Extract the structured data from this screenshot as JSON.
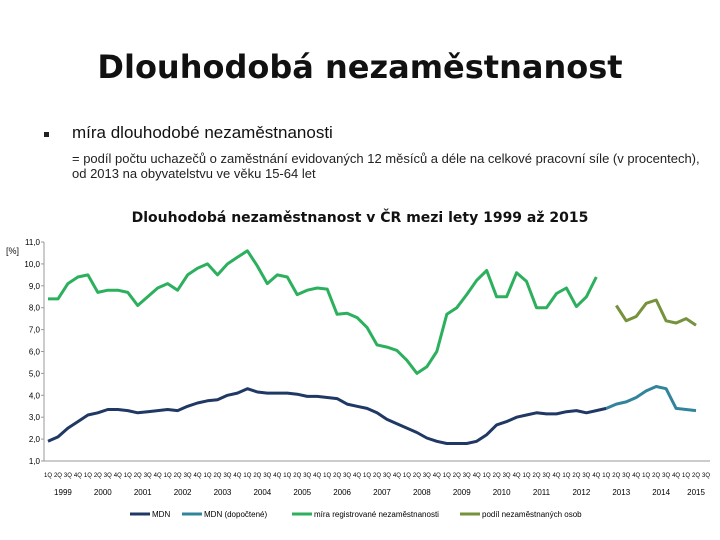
{
  "slide": {
    "title": "Dlouhodobá nezaměstnanost",
    "bullet": "míra dlouhodobé nezaměstnanosti",
    "description": "= podíl počtu uchazečů o zaměstnání evidovaných 12 měsíců a déle na celkové pracovní síle (v procentech), od 2013 na obyvatelstvu ve věku 15-64 let"
  },
  "chart_data": {
    "type": "line",
    "title": "Dlouhodobá nezaměstnanost v ČR mezi lety 1999 až 2015",
    "ylabel": "[%]",
    "xlabel": "",
    "ylim": [
      1.0,
      11.0
    ],
    "yticks": [
      "1,0",
      "2,0",
      "3,0",
      "4,0",
      "5,0",
      "6,0",
      "7,0",
      "8,0",
      "9,0",
      "10,0",
      "11,0"
    ],
    "quarter_labels": [
      "1Q",
      "2Q",
      "3Q",
      "4Q"
    ],
    "years": [
      "1999",
      "2000",
      "2001",
      "2002",
      "2003",
      "2004",
      "2005",
      "2006",
      "2007",
      "2008",
      "2009",
      "2010",
      "2011",
      "2012",
      "2013",
      "2014",
      "2015"
    ],
    "legend_position": "bottom",
    "grid": false,
    "series": [
      {
        "name": "MDN",
        "color": "#1f3864",
        "values": [
          1.9,
          2.1,
          2.5,
          2.8,
          3.1,
          3.2,
          3.35,
          3.35,
          3.3,
          3.2,
          3.25,
          3.3,
          3.35,
          3.3,
          3.5,
          3.65,
          3.75,
          3.8,
          4.0,
          4.1,
          4.3,
          4.15,
          4.1,
          4.1,
          4.1,
          4.05,
          3.95,
          3.95,
          3.9,
          3.85,
          3.6,
          3.5,
          3.4,
          3.2,
          2.9,
          2.7,
          2.5,
          2.3,
          2.05,
          1.9,
          1.8,
          1.8,
          1.8,
          1.9,
          2.2,
          2.65,
          2.8,
          3.0,
          3.1,
          3.2,
          3.15,
          3.15,
          3.25,
          3.3,
          3.2,
          3.3,
          3.4,
          null,
          null,
          null,
          null,
          null,
          null,
          null,
          null,
          null,
          null
        ]
      },
      {
        "name": "MDN (dopočtené)",
        "color": "#31849b",
        "values": [
          null,
          null,
          null,
          null,
          null,
          null,
          null,
          null,
          null,
          null,
          null,
          null,
          null,
          null,
          null,
          null,
          null,
          null,
          null,
          null,
          null,
          null,
          null,
          null,
          null,
          null,
          null,
          null,
          null,
          null,
          null,
          null,
          null,
          null,
          null,
          null,
          null,
          null,
          null,
          null,
          null,
          null,
          null,
          null,
          null,
          null,
          null,
          null,
          null,
          null,
          null,
          null,
          null,
          null,
          null,
          null,
          3.4,
          3.6,
          3.7,
          3.9,
          4.2,
          4.4,
          4.3,
          3.4,
          3.35,
          3.3,
          null
        ]
      },
      {
        "name": "míra registrované nezaměstnanosti",
        "color": "#2cb05e",
        "values": [
          8.4,
          8.4,
          9.1,
          9.4,
          9.5,
          8.7,
          8.8,
          8.8,
          8.7,
          8.1,
          8.5,
          8.9,
          9.1,
          8.8,
          9.5,
          9.8,
          10.0,
          9.5,
          10.0,
          10.3,
          10.6,
          9.9,
          9.1,
          9.5,
          9.4,
          8.6,
          8.8,
          8.9,
          8.85,
          7.7,
          7.75,
          7.55,
          7.1,
          6.3,
          6.2,
          6.05,
          5.6,
          5.0,
          5.3,
          6.0,
          7.7,
          8.0,
          8.6,
          9.25,
          9.7,
          8.5,
          8.5,
          9.6,
          9.2,
          8.0,
          8.0,
          8.65,
          8.9,
          8.05,
          8.5,
          9.4,
          null,
          null,
          null,
          null,
          null,
          null,
          null,
          null,
          null,
          null,
          null
        ]
      },
      {
        "name": "podíl nezaměstnaných osob",
        "color": "#76923c",
        "values": [
          null,
          null,
          null,
          null,
          null,
          null,
          null,
          null,
          null,
          null,
          null,
          null,
          null,
          null,
          null,
          null,
          null,
          null,
          null,
          null,
          null,
          null,
          null,
          null,
          null,
          null,
          null,
          null,
          null,
          null,
          null,
          null,
          null,
          null,
          null,
          null,
          null,
          null,
          null,
          null,
          null,
          null,
          null,
          null,
          null,
          null,
          null,
          null,
          null,
          null,
          null,
          null,
          null,
          null,
          null,
          null,
          null,
          8.1,
          7.4,
          7.6,
          8.2,
          8.35,
          7.4,
          7.3,
          7.5,
          7.2,
          null
        ]
      }
    ]
  }
}
